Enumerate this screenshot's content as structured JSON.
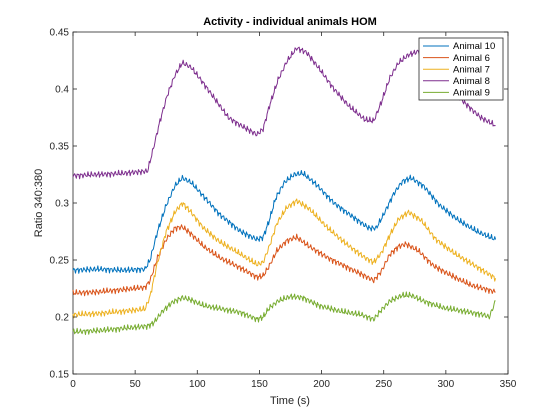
{
  "chart_data": {
    "type": "line",
    "title": "Activity - individual animals HOM",
    "xlabel": "Time (s)",
    "ylabel": "Ratio 340:380",
    "xlim": [
      0,
      350
    ],
    "ylim": [
      0.15,
      0.45
    ],
    "xticks": [
      0,
      50,
      100,
      150,
      200,
      250,
      300,
      350
    ],
    "yticks": [
      0.15,
      0.2,
      0.25,
      0.3,
      0.35,
      0.4,
      0.45
    ],
    "xtick_labels": [
      "0",
      "50",
      "100",
      "150",
      "200",
      "250",
      "300",
      "350"
    ],
    "ytick_labels": [
      "0.15",
      "0.2",
      "0.25",
      "0.3",
      "0.35",
      "0.4",
      "0.45"
    ],
    "grid": false,
    "legend_position": "top-right",
    "series": [
      {
        "name": "Animal 10",
        "color": "#0072BD",
        "points": [
          [
            0,
            0.241
          ],
          [
            20,
            0.242
          ],
          [
            40,
            0.241
          ],
          [
            58,
            0.242
          ],
          [
            62,
            0.25
          ],
          [
            68,
            0.275
          ],
          [
            75,
            0.298
          ],
          [
            82,
            0.315
          ],
          [
            88,
            0.322
          ],
          [
            95,
            0.318
          ],
          [
            105,
            0.306
          ],
          [
            118,
            0.29
          ],
          [
            135,
            0.275
          ],
          [
            148,
            0.268
          ],
          [
            153,
            0.27
          ],
          [
            158,
            0.285
          ],
          [
            163,
            0.304
          ],
          [
            170,
            0.318
          ],
          [
            178,
            0.325
          ],
          [
            185,
            0.326
          ],
          [
            195,
            0.317
          ],
          [
            210,
            0.3
          ],
          [
            225,
            0.288
          ],
          [
            238,
            0.278
          ],
          [
            244,
            0.278
          ],
          [
            250,
            0.29
          ],
          [
            258,
            0.308
          ],
          [
            265,
            0.319
          ],
          [
            272,
            0.322
          ],
          [
            282,
            0.315
          ],
          [
            295,
            0.298
          ],
          [
            310,
            0.285
          ],
          [
            325,
            0.275
          ],
          [
            340,
            0.268
          ]
        ]
      },
      {
        "name": "Animal 6",
        "color": "#D95319",
        "points": [
          [
            0,
            0.221
          ],
          [
            20,
            0.222
          ],
          [
            40,
            0.224
          ],
          [
            58,
            0.226
          ],
          [
            62,
            0.232
          ],
          [
            68,
            0.252
          ],
          [
            75,
            0.268
          ],
          [
            82,
            0.278
          ],
          [
            88,
            0.279
          ],
          [
            95,
            0.273
          ],
          [
            105,
            0.262
          ],
          [
            118,
            0.252
          ],
          [
            135,
            0.243
          ],
          [
            148,
            0.235
          ],
          [
            153,
            0.236
          ],
          [
            158,
            0.245
          ],
          [
            164,
            0.258
          ],
          [
            172,
            0.267
          ],
          [
            180,
            0.27
          ],
          [
            190,
            0.262
          ],
          [
            205,
            0.252
          ],
          [
            220,
            0.244
          ],
          [
            235,
            0.236
          ],
          [
            242,
            0.232
          ],
          [
            248,
            0.24
          ],
          [
            255,
            0.255
          ],
          [
            262,
            0.262
          ],
          [
            268,
            0.264
          ],
          [
            278,
            0.258
          ],
          [
            290,
            0.245
          ],
          [
            305,
            0.236
          ],
          [
            320,
            0.228
          ],
          [
            340,
            0.222
          ]
        ]
      },
      {
        "name": "Animal 7",
        "color": "#EDB120",
        "points": [
          [
            0,
            0.202
          ],
          [
            20,
            0.203
          ],
          [
            40,
            0.205
          ],
          [
            58,
            0.207
          ],
          [
            62,
            0.218
          ],
          [
            68,
            0.248
          ],
          [
            75,
            0.275
          ],
          [
            82,
            0.292
          ],
          [
            88,
            0.3
          ],
          [
            95,
            0.292
          ],
          [
            105,
            0.278
          ],
          [
            118,
            0.266
          ],
          [
            135,
            0.255
          ],
          [
            148,
            0.246
          ],
          [
            153,
            0.248
          ],
          [
            158,
            0.262
          ],
          [
            164,
            0.282
          ],
          [
            172,
            0.296
          ],
          [
            180,
            0.302
          ],
          [
            190,
            0.295
          ],
          [
            205,
            0.278
          ],
          [
            220,
            0.264
          ],
          [
            235,
            0.252
          ],
          [
            242,
            0.248
          ],
          [
            248,
            0.256
          ],
          [
            255,
            0.272
          ],
          [
            262,
            0.286
          ],
          [
            270,
            0.292
          ],
          [
            280,
            0.285
          ],
          [
            292,
            0.268
          ],
          [
            308,
            0.255
          ],
          [
            325,
            0.244
          ],
          [
            340,
            0.234
          ]
        ]
      },
      {
        "name": "Animal 8",
        "color": "#7E2F8E",
        "points": [
          [
            0,
            0.324
          ],
          [
            20,
            0.325
          ],
          [
            40,
            0.326
          ],
          [
            60,
            0.328
          ],
          [
            64,
            0.345
          ],
          [
            70,
            0.372
          ],
          [
            76,
            0.395
          ],
          [
            82,
            0.412
          ],
          [
            88,
            0.423
          ],
          [
            95,
            0.419
          ],
          [
            105,
            0.405
          ],
          [
            115,
            0.39
          ],
          [
            125,
            0.375
          ],
          [
            135,
            0.368
          ],
          [
            148,
            0.36
          ],
          [
            153,
            0.365
          ],
          [
            158,
            0.385
          ],
          [
            165,
            0.408
          ],
          [
            172,
            0.424
          ],
          [
            180,
            0.436
          ],
          [
            188,
            0.432
          ],
          [
            198,
            0.418
          ],
          [
            210,
            0.4
          ],
          [
            222,
            0.385
          ],
          [
            235,
            0.373
          ],
          [
            242,
            0.372
          ],
          [
            248,
            0.388
          ],
          [
            255,
            0.41
          ],
          [
            262,
            0.423
          ],
          [
            270,
            0.43
          ],
          [
            278,
            0.433
          ],
          [
            288,
            0.42
          ],
          [
            300,
            0.405
          ],
          [
            315,
            0.388
          ],
          [
            328,
            0.375
          ],
          [
            340,
            0.368
          ]
        ]
      },
      {
        "name": "Animal 9",
        "color": "#77AC30",
        "points": [
          [
            0,
            0.187
          ],
          [
            20,
            0.188
          ],
          [
            40,
            0.19
          ],
          [
            60,
            0.192
          ],
          [
            65,
            0.195
          ],
          [
            72,
            0.205
          ],
          [
            80,
            0.213
          ],
          [
            88,
            0.217
          ],
          [
            95,
            0.215
          ],
          [
            105,
            0.21
          ],
          [
            120,
            0.207
          ],
          [
            135,
            0.204
          ],
          [
            148,
            0.198
          ],
          [
            153,
            0.2
          ],
          [
            158,
            0.208
          ],
          [
            165,
            0.214
          ],
          [
            175,
            0.218
          ],
          [
            185,
            0.217
          ],
          [
            198,
            0.21
          ],
          [
            215,
            0.205
          ],
          [
            232,
            0.202
          ],
          [
            242,
            0.198
          ],
          [
            248,
            0.206
          ],
          [
            255,
            0.214
          ],
          [
            265,
            0.219
          ],
          [
            272,
            0.219
          ],
          [
            282,
            0.214
          ],
          [
            298,
            0.208
          ],
          [
            315,
            0.205
          ],
          [
            330,
            0.202
          ],
          [
            335,
            0.2
          ],
          [
            340,
            0.214
          ]
        ]
      }
    ]
  }
}
